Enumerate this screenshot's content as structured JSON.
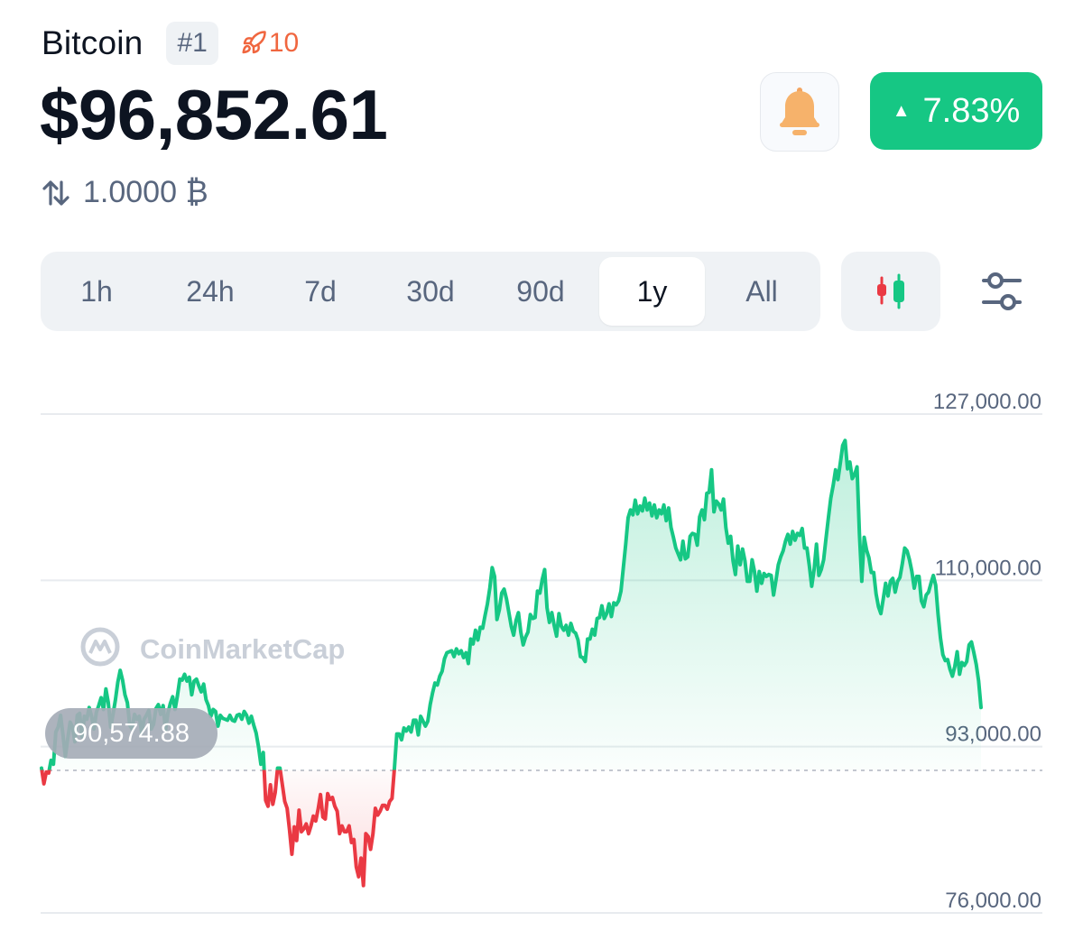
{
  "coin": {
    "name": "Bitcoin",
    "rank": "#1",
    "watchlist_count": "10"
  },
  "price": "$96,852.61",
  "change": {
    "value": "7.83%",
    "direction": "up",
    "color": "#16c784"
  },
  "converter": {
    "amount": "1.0000 ₿"
  },
  "timeframes": [
    "1h",
    "24h",
    "7d",
    "30d",
    "90d",
    "1y",
    "All"
  ],
  "active_timeframe": "1y",
  "icons": {
    "watchlist": "rocket-icon",
    "alert": "bell-icon",
    "convert": "swap-arrows-icon",
    "chart_type": "candlestick-icon",
    "settings": "sliders-icon"
  },
  "watermark": "CoinMarketCap",
  "chart_data": {
    "type": "area",
    "y_ticks": [
      "127,000.00",
      "110,000.00",
      "93,000.00",
      "76,000.00"
    ],
    "ylim": [
      76000,
      127000
    ],
    "baseline": {
      "label": "90,574.88",
      "value": 90574.88
    },
    "colors": {
      "up": "#16c784",
      "down": "#ea3943"
    },
    "grid": true,
    "values": [
      90800,
      89200,
      90400,
      90300,
      91600,
      91200,
      94500,
      95000,
      96200,
      94200,
      92000,
      93800,
      95500,
      95000,
      93500,
      96200,
      96400,
      94000,
      96100,
      95800,
      97000,
      96100,
      94800,
      96500,
      97200,
      98000,
      96800,
      98900,
      97500,
      95000,
      96300,
      97800,
      99600,
      100800,
      99800,
      98300,
      97500,
      95200,
      94800,
      96300,
      95800,
      96100,
      94400,
      95800,
      96200,
      96700,
      94800,
      95300,
      96900,
      97300,
      96300,
      97200,
      94700,
      96400,
      97400,
      98100,
      96800,
      98200,
      99900,
      99800,
      100400,
      99700,
      100100,
      98300,
      99700,
      99900,
      99200,
      98600,
      99400,
      97800,
      97200,
      96100,
      96800,
      96600,
      95100,
      96200,
      95900,
      95800,
      95700,
      96200,
      95700,
      95600,
      96200,
      96300,
      95800,
      96600,
      96200,
      95400,
      96100,
      95200,
      94400,
      93000,
      91200,
      92400,
      87500,
      86900,
      89100,
      87100,
      88300,
      90800,
      90800,
      89100,
      87400,
      86700,
      84500,
      82000,
      84800,
      83400,
      86500,
      84300,
      84600,
      85100,
      84100,
      84900,
      85900,
      85400,
      86600,
      88100,
      85800,
      85600,
      88200,
      87600,
      87800,
      86900,
      86400,
      84100,
      84900,
      84300,
      84300,
      84900,
      83200,
      83500,
      80700,
      79700,
      81600,
      78800,
      84100,
      83800,
      82500,
      84100,
      86700,
      86000,
      86400,
      87000,
      87000,
      86600,
      87400,
      87700,
      90800,
      94300,
      94300,
      93700,
      94900,
      94600,
      95000,
      94500,
      95700,
      95700,
      94200,
      96100,
      95600,
      95100,
      95600,
      97300,
      98500,
      99500,
      99300,
      100200,
      100700,
      102000,
      102600,
      102700,
      102800,
      102200,
      103000,
      102500,
      102800,
      102100,
      102600,
      101500,
      104000,
      103500,
      104900,
      103900,
      105200,
      105100,
      106400,
      107600,
      109200,
      111300,
      110400,
      106000,
      107000,
      108700,
      109100,
      108100,
      106700,
      105300,
      104400,
      105900,
      106700,
      104700,
      103400,
      104200,
      104700,
      106500,
      106100,
      106200,
      108900,
      108700,
      110100,
      111100,
      107200,
      105700,
      106700,
      105400,
      104300,
      106600,
      105300,
      104900,
      105400,
      104400,
      105600,
      104800,
      104600,
      103900,
      102200,
      102100,
      101700,
      104000,
      104000,
      105000,
      104400,
      106100,
      106200,
      107400,
      106100,
      106600,
      107600,
      106300,
      107700,
      107500,
      107900,
      108900,
      111300,
      113700,
      116400,
      117200,
      116700,
      118200,
      116800,
      117600,
      117100,
      118400,
      117200,
      117900,
      116600,
      117700,
      116400,
      117200,
      116800,
      117700,
      116100,
      117400,
      115400,
      114400,
      113300,
      112700,
      112100,
      114000,
      112200,
      112400,
      114500,
      114800,
      114700,
      113600,
      116500,
      117200,
      116200,
      118900,
      119000,
      121300,
      117000,
      118100,
      117800,
      117200,
      118300,
      115400,
      113800,
      114500,
      112000,
      110600,
      113500,
      111600,
      113200,
      112000,
      109900,
      109900,
      112100,
      110900,
      108900,
      110900,
      109700,
      110700,
      110400,
      110600,
      110500,
      108500,
      110000,
      111600,
      112400,
      113000,
      114000,
      114700,
      113700,
      115000,
      114100,
      114800,
      114600,
      115300,
      113300,
      113300,
      111500,
      109400,
      111100,
      113700,
      110500,
      111100,
      112100,
      114300,
      116400,
      118400,
      119700,
      121300,
      120300,
      122000,
      123800,
      124300,
      121400,
      122100,
      120400,
      120800,
      121600,
      114800,
      109900,
      114400,
      113100,
      112300,
      110800,
      110800,
      108600,
      107300,
      106600,
      108100,
      109700,
      108400,
      109900,
      110200,
      108800,
      109900,
      110300,
      111700,
      113300,
      113000,
      112100,
      110900,
      109200,
      110400,
      110400,
      107900,
      107300,
      108500,
      108800,
      109700,
      110500,
      109500,
      106500,
      104100,
      102400,
      101800,
      101900,
      100900,
      100200,
      101200,
      102700,
      100400,
      101600,
      101300,
      101700,
      103400,
      103700,
      102600,
      101400,
      99700,
      97000
    ]
  }
}
